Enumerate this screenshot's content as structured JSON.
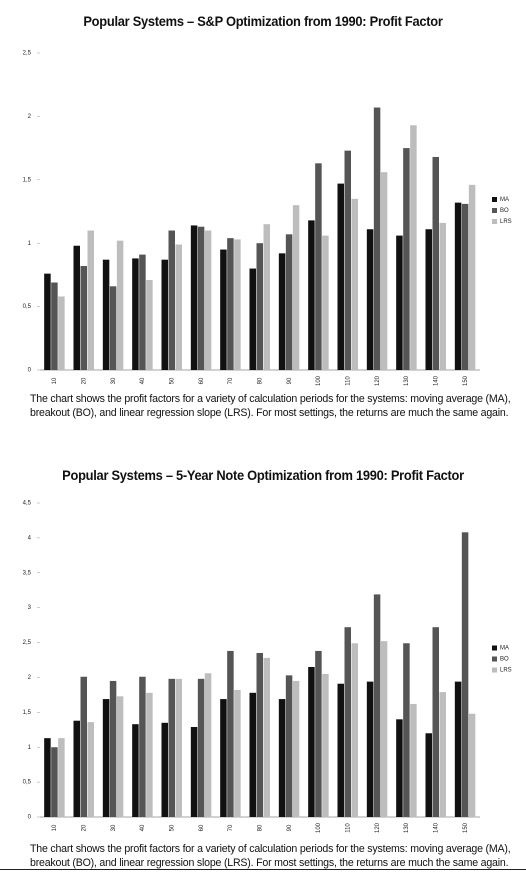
{
  "chart_data": [
    {
      "type": "bar",
      "title": "Popular Systems – S&P Optimization from 1990: Profit Factor",
      "categories": [
        "10",
        "20",
        "30",
        "40",
        "50",
        "60",
        "70",
        "80",
        "90",
        "100",
        "110",
        "120",
        "130",
        "140",
        "150"
      ],
      "series": [
        {
          "name": "MA",
          "color": "#111111",
          "values": [
            0.76,
            0.98,
            0.87,
            0.88,
            0.87,
            1.14,
            0.95,
            0.8,
            0.92,
            1.18,
            1.47,
            1.11,
            1.06,
            1.11,
            1.32
          ]
        },
        {
          "name": "BO",
          "color": "#555555",
          "values": [
            0.69,
            0.82,
            0.66,
            0.91,
            1.1,
            1.13,
            1.04,
            1.0,
            1.07,
            1.63,
            1.73,
            2.07,
            1.75,
            1.68,
            1.31
          ]
        },
        {
          "name": "LRS",
          "color": "#bdbdbd",
          "values": [
            0.58,
            1.1,
            1.02,
            0.71,
            0.99,
            1.1,
            1.03,
            1.15,
            1.3,
            1.06,
            1.35,
            1.56,
            1.93,
            1.16,
            1.46
          ]
        }
      ],
      "ylim": [
        0,
        2.5
      ],
      "yticks": [
        0,
        {
          "value": 0.5,
          "label": "0,5"
        },
        1,
        {
          "value": 1.5,
          "label": "1,5"
        },
        2,
        {
          "value": 2.5,
          "label": "2,5"
        }
      ],
      "legend": "right",
      "caption": "The chart shows the profit factors for a variety of calculation periods for the systems: moving average (MA), breakout (BO), and linear regression slope (LRS). For most settings, the returns are much the same again."
    },
    {
      "type": "bar",
      "title": "Popular Systems – 5-Year Note Optimization from 1990: Profit Factor",
      "categories": [
        "10",
        "20",
        "30",
        "40",
        "50",
        "60",
        "70",
        "80",
        "90",
        "100",
        "110",
        "120",
        "130",
        "140",
        "150"
      ],
      "series": [
        {
          "name": "MA",
          "color": "#111111",
          "values": [
            1.13,
            1.38,
            1.69,
            1.33,
            1.35,
            1.29,
            1.69,
            1.78,
            1.69,
            2.15,
            1.91,
            1.94,
            1.4,
            1.2,
            1.94
          ]
        },
        {
          "name": "BO",
          "color": "#555555",
          "values": [
            1.0,
            2.01,
            1.95,
            2.01,
            1.98,
            1.98,
            2.38,
            2.35,
            2.03,
            2.38,
            2.72,
            3.19,
            2.49,
            2.72,
            4.08
          ]
        },
        {
          "name": "LRS",
          "color": "#bdbdbd",
          "values": [
            1.13,
            1.36,
            1.73,
            1.78,
            1.98,
            2.06,
            1.82,
            2.28,
            1.95,
            2.05,
            2.49,
            2.52,
            1.62,
            1.79,
            1.48
          ]
        }
      ],
      "ylim": [
        0,
        4.5
      ],
      "yticks": [
        0,
        {
          "value": 0.5,
          "label": "0,5"
        },
        1,
        {
          "value": 1.5,
          "label": "1,5"
        },
        2,
        {
          "value": 2.5,
          "label": "2,5"
        },
        3,
        {
          "value": 3.5,
          "label": "3,5"
        },
        4,
        {
          "value": 4.5,
          "label": "4,5"
        }
      ],
      "legend": "right",
      "caption": "The chart shows the profit factors for a variety of calculation periods for the systems: moving average (MA), breakout (BO), and linear regression slope (LRS). For most settings, the returns are much the same again."
    }
  ]
}
